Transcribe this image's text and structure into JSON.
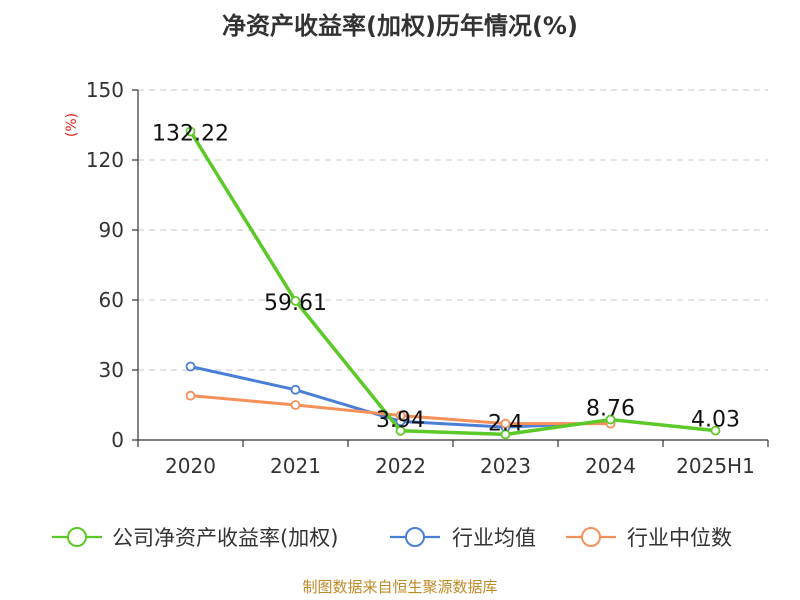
{
  "chart_data": {
    "type": "line",
    "title": "净资产收益率(加权)历年情况(%)",
    "unit": "(%)",
    "categories": [
      "2020",
      "2021",
      "2022",
      "2023",
      "2024",
      "2025H1"
    ],
    "yticks": [
      "0",
      "30",
      "60",
      "90",
      "120",
      "150"
    ],
    "ylim": [
      0,
      150
    ],
    "grid": true,
    "legend_position": "bottom",
    "series": [
      {
        "name": "公司净资产收益率(加权)",
        "color": "#5bc928",
        "values": [
          132.22,
          59.61,
          3.94,
          2.4,
          8.76,
          4.03
        ],
        "labels": [
          "132.22",
          "59.61",
          "3.94",
          "2.4",
          "8.76",
          "4.03"
        ]
      },
      {
        "name": "行业均值",
        "color": "#4a7fd8",
        "values": [
          31.5,
          21.5,
          8.0,
          5.5,
          7.5,
          null
        ]
      },
      {
        "name": "行业中位数",
        "color": "#f4905a",
        "values": [
          19.0,
          15.0,
          10.5,
          7.0,
          7.0,
          null
        ]
      }
    ]
  },
  "source": "制图数据来自恒生聚源数据库"
}
